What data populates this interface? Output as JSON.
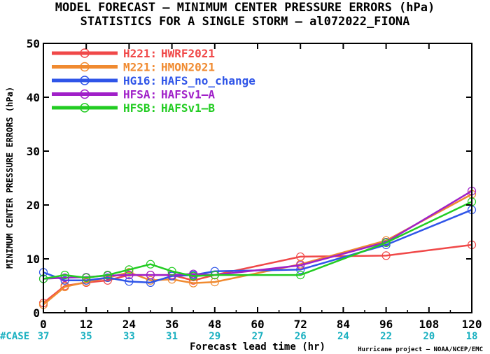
{
  "chart_data": {
    "type": "line",
    "title_line1": "MODEL FORECAST – MINIMUM CENTER PRESSURE ERRORS (hPa)",
    "title_line2": "STATISTICS FOR A SINGLE STORM – al072022_FIONA",
    "xlabel": "Forecast lead time (hr)",
    "ylabel": "MINIMUM CENTER PRESSURE ERRORS (hPa)",
    "xlim": [
      0,
      120
    ],
    "ylim": [
      0,
      50
    ],
    "xticks": [
      "0",
      "12",
      "24",
      "36",
      "48",
      "60",
      "72",
      "84",
      "96",
      "108",
      "120"
    ],
    "yticks": [
      "0",
      "10",
      "20",
      "30",
      "40",
      "50"
    ],
    "case_label": "#CASE",
    "case_x": [
      0,
      12,
      24,
      36,
      48,
      60,
      72,
      84,
      96,
      108,
      120
    ],
    "case_counts": [
      "37",
      "35",
      "33",
      "31",
      "29",
      "27",
      "26",
      "24",
      "22",
      "20",
      "18"
    ],
    "case_color": "#1ab0c0",
    "credit": "Hurricane project – NOAA/NCEP/EMC",
    "series": [
      {
        "code": "H221:",
        "model": "HWRF2021",
        "color": "#f04848",
        "x": [
          0,
          6,
          12,
          18,
          24,
          30,
          36,
          42,
          48,
          72,
          96,
          120
        ],
        "y": [
          1.8,
          5.0,
          5.6,
          6.0,
          7.0,
          7.0,
          7.0,
          6.0,
          7.0,
          10.4,
          10.6,
          12.6
        ]
      },
      {
        "code": "M221:",
        "model": "HMON2021",
        "color": "#f08a30",
        "x": [
          0,
          6,
          12,
          18,
          24,
          30,
          36,
          42,
          48,
          72,
          96,
          120
        ],
        "y": [
          1.5,
          4.8,
          5.7,
          6.5,
          7.5,
          6.0,
          6.2,
          5.5,
          5.7,
          9.0,
          13.4,
          22.0
        ]
      },
      {
        "code": "HG16:",
        "model": "HAFS_no_change",
        "color": "#2f55e8",
        "x": [
          0,
          6,
          12,
          18,
          24,
          30,
          36,
          42,
          48,
          72,
          96,
          120
        ],
        "y": [
          7.5,
          6.0,
          6.0,
          6.5,
          5.8,
          5.6,
          6.8,
          7.0,
          7.7,
          8.0,
          12.6,
          19.1
        ]
      },
      {
        "code": "HFSA:",
        "model": "HAFSv1–A",
        "color": "#a020c8",
        "x": [
          0,
          6,
          12,
          18,
          24,
          30,
          36,
          42,
          48,
          72,
          96,
          120
        ],
        "y": [
          6.3,
          6.5,
          6.6,
          6.9,
          7.0,
          7.0,
          7.0,
          7.2,
          7.0,
          8.8,
          13.1,
          22.6
        ]
      },
      {
        "code": "HFSB:",
        "model": "HAFSv1–B",
        "color": "#22cc22",
        "x": [
          0,
          6,
          12,
          18,
          24,
          30,
          36,
          42,
          48,
          72,
          96,
          120
        ],
        "y": [
          6.3,
          7.0,
          6.5,
          7.0,
          8.0,
          9.0,
          7.7,
          6.8,
          7.0,
          7.0,
          13.0,
          20.6
        ]
      }
    ]
  }
}
